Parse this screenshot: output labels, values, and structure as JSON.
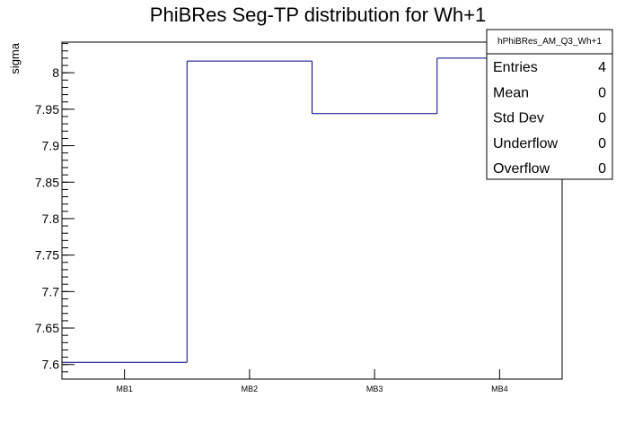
{
  "chart_data": {
    "type": "histogram-step",
    "title": "PhiBRes Seg-TP distribution for Wh+1",
    "xlabel": "",
    "ylabel": "sigma",
    "categories": [
      "MB1",
      "MB2",
      "MB3",
      "MB4"
    ],
    "values": [
      7.603,
      8.016,
      7.944,
      8.02
    ],
    "ylim": [
      7.58,
      8.042
    ],
    "yticks": [
      7.6,
      7.65,
      7.7,
      7.75,
      7.8,
      7.85,
      7.9,
      7.95,
      8.0
    ],
    "ytick_labels": [
      "7.6",
      "7.65",
      "7.7",
      "7.75",
      "7.8",
      "7.85",
      "7.9",
      "7.95",
      "8"
    ],
    "series_color": "#000080",
    "grid": false,
    "legend_placement": "top-right"
  },
  "stats_box": {
    "name": "hPhiBRes_AM_Q3_Wh+1",
    "rows": [
      {
        "label": "Entries",
        "value": "4"
      },
      {
        "label": "Mean",
        "value": "0"
      },
      {
        "label": "Std Dev",
        "value": "0"
      },
      {
        "label": "Underflow",
        "value": "0"
      },
      {
        "label": "Overflow",
        "value": "0"
      }
    ]
  }
}
